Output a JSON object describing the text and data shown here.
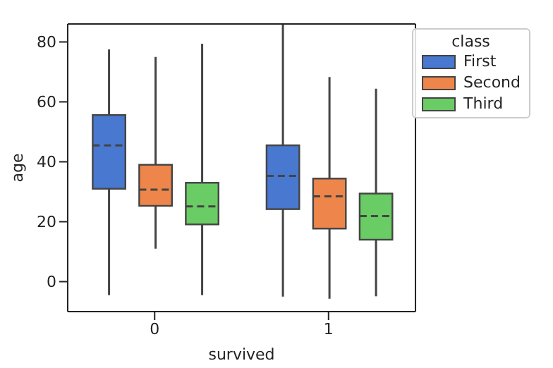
{
  "chart_data": {
    "type": "box",
    "xlabel": "survived",
    "ylabel": "age",
    "legend_title": "class",
    "categories": [
      "0",
      "1"
    ],
    "series": [
      {
        "name": "First",
        "color": "#4878d0",
        "boxes": [
          {
            "low": -4.5,
            "q1": 31,
            "median": 45.5,
            "q3": 55.6,
            "high": 77.5
          },
          {
            "low": -5,
            "q1": 24.2,
            "median": 35.3,
            "q3": 45.5,
            "high": 86
          }
        ]
      },
      {
        "name": "Second",
        "color": "#ee854a",
        "boxes": [
          {
            "low": 11,
            "q1": 25.3,
            "median": 30.7,
            "q3": 39,
            "high": 75
          },
          {
            "low": -5.7,
            "q1": 17.7,
            "median": 28.5,
            "q3": 34.4,
            "high": 68.3
          }
        ]
      },
      {
        "name": "Third",
        "color": "#6acc64",
        "boxes": [
          {
            "low": -4.5,
            "q1": 19.1,
            "median": 25.1,
            "q3": 33,
            "high": 79.4
          },
          {
            "low": -4.9,
            "q1": 14,
            "median": 21.9,
            "q3": 29.4,
            "high": 64.4
          }
        ]
      }
    ],
    "ylim": [
      -10,
      86
    ],
    "yticks": [
      0,
      20,
      40,
      60,
      80
    ],
    "legend": "top right"
  }
}
